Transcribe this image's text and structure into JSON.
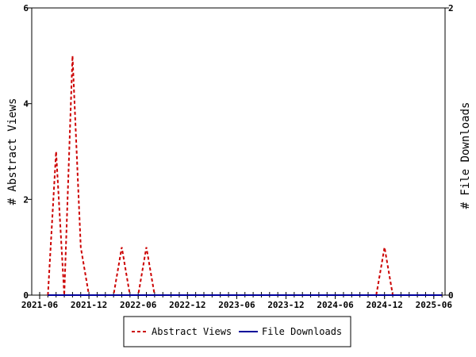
{
  "chart_data": {
    "type": "line",
    "ylabel_left": "# Abstract Views",
    "ylabel_right": "# File Downloads",
    "yleft_ticks": [
      "0",
      "2",
      "4",
      "6"
    ],
    "yright_ticks": [
      "0",
      "2"
    ],
    "x_ticks": [
      "2021-06",
      "2021-12",
      "2022-06",
      "2022-12",
      "2023-06",
      "2023-12",
      "2024-06",
      "2024-12",
      "2025-06"
    ],
    "ylim_left": [
      0,
      6
    ],
    "ylim_right": [
      0,
      2
    ],
    "series": [
      {
        "name": "Abstract Views",
        "color": "#cc0000",
        "style": "dashed",
        "axis": "left",
        "points": [
          [
            "2021-07",
            0
          ],
          [
            "2021-08",
            3
          ],
          [
            "2021-09",
            0
          ],
          [
            "2021-10",
            5
          ],
          [
            "2021-11",
            1
          ],
          [
            "2021-12",
            0
          ],
          [
            "2022-01",
            0
          ],
          [
            "2022-02",
            0
          ],
          [
            "2022-03",
            0
          ],
          [
            "2022-04",
            1
          ],
          [
            "2022-05",
            0
          ],
          [
            "2022-06",
            0
          ],
          [
            "2022-07",
            1
          ],
          [
            "2022-08",
            0
          ],
          [
            "2024-11",
            0
          ],
          [
            "2024-12",
            1
          ],
          [
            "2025-01",
            0
          ],
          [
            "2025-07",
            0
          ]
        ]
      },
      {
        "name": "File Downloads",
        "color": "#000099",
        "style": "solid",
        "axis": "right",
        "points": [
          [
            "2021-07",
            0
          ],
          [
            "2025-07",
            0
          ]
        ]
      }
    ],
    "grid": false,
    "legend_position": "bottom"
  }
}
